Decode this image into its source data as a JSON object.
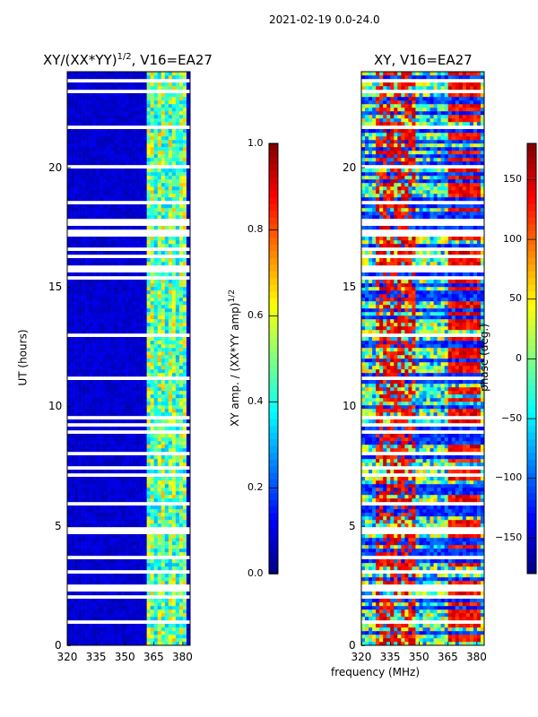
{
  "suptitle": "2021-02-19 0.0-24.0",
  "chart_data": [
    {
      "type": "heatmap",
      "title": "XY/(XX*YY)",
      "title_sup": "1/2",
      "title_suffix": ", V16=EA27",
      "xlabel": "",
      "ylabel": "UT (hours)",
      "xlim": [
        320,
        384
      ],
      "ylim": [
        0,
        24
      ],
      "xticks": [
        "320",
        "335",
        "350",
        "365",
        "380"
      ],
      "yticks": [
        "0",
        "5",
        "10",
        "15",
        "20"
      ],
      "colorbar": {
        "label": "XY amp. / (XX*YY amp)",
        "label_sup": "1/2",
        "range": [
          0,
          1
        ],
        "ticks": [
          "0.0",
          "0.2",
          "0.4",
          "0.6",
          "0.8",
          "1.0"
        ],
        "cmap": "jet"
      },
      "description_values": {
        "background_amp": 0.08,
        "band_365_382_amp": 0.45
      }
    },
    {
      "type": "heatmap",
      "title": "XY, V16=EA27",
      "xlabel": "frequency (MHz)",
      "xlim": [
        320,
        384
      ],
      "ylim": [
        0,
        24
      ],
      "xticks": [
        "320",
        "335",
        "350",
        "365",
        "380"
      ],
      "yticks": [
        "0",
        "5",
        "10",
        "15",
        "20"
      ],
      "colorbar": {
        "label": "phase (deg.)",
        "range": [
          -180,
          180
        ],
        "ticks": [
          "150",
          "100",
          "50",
          "0",
          "−50",
          "−100",
          "−150"
        ],
        "cmap": "jet"
      }
    }
  ]
}
